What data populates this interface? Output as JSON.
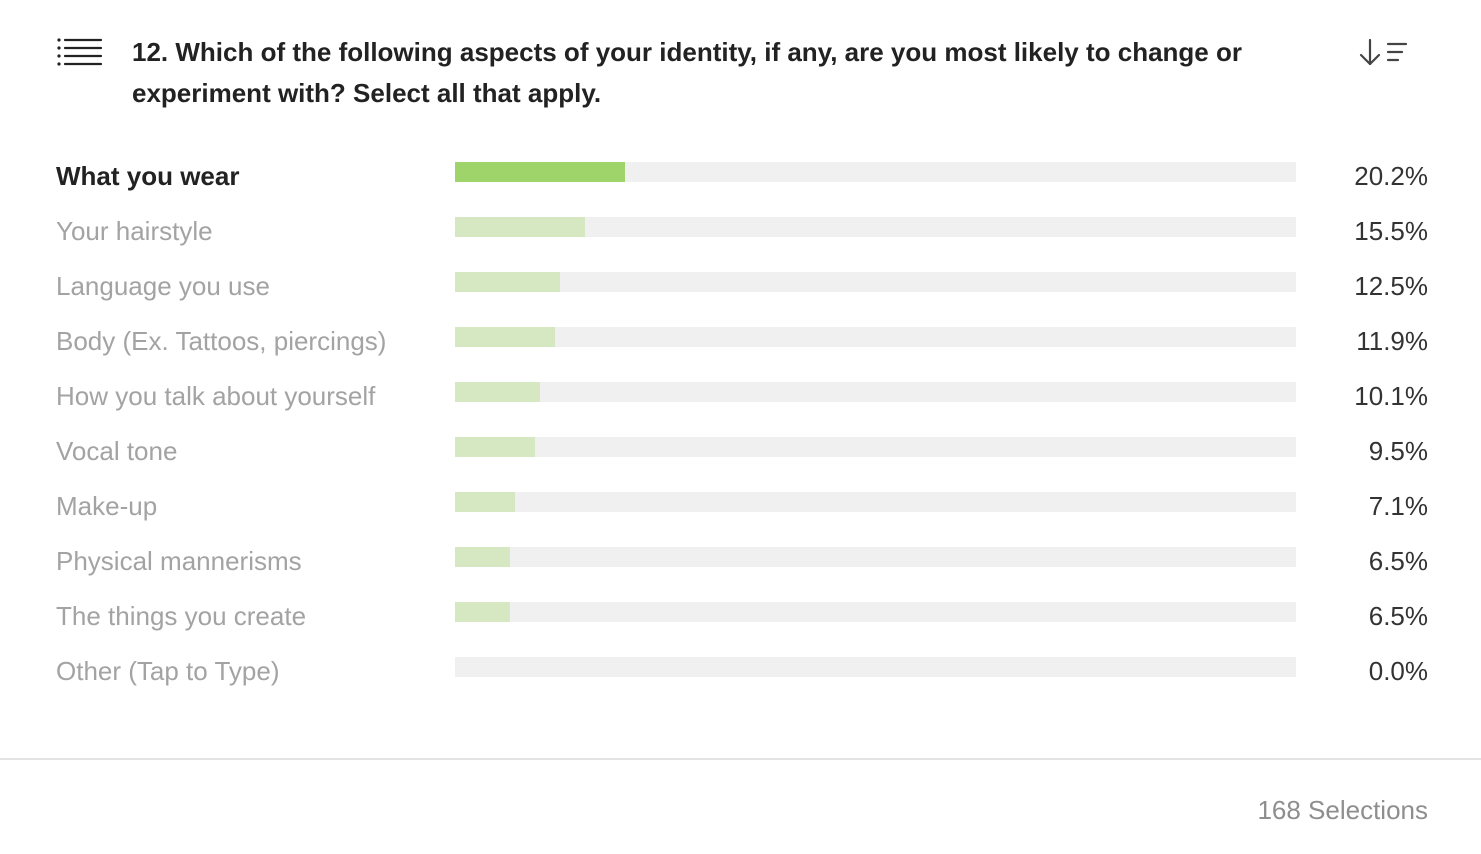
{
  "header": {
    "title": "12. Which of the following aspects of your identity, if any, are you most likely to change or experiment with? Select all that apply."
  },
  "icons": {
    "list": "list-icon",
    "sort": "sort-descending-icon"
  },
  "colors": {
    "top_bar": "#9fd46a",
    "other_bars": "#d6e8c1",
    "track": "#f0f0f0"
  },
  "chart_data": {
    "type": "bar",
    "orientation": "horizontal",
    "categories": [
      "What you wear",
      "Your hairstyle",
      "Language you use",
      "Body (Ex. Tattoos, piercings)",
      "How you talk about yourself",
      "Vocal tone",
      "Make-up",
      "Physical mannerisms",
      "The things you create",
      "Other (Tap to Type)"
    ],
    "values": [
      20.2,
      15.5,
      12.5,
      11.9,
      10.1,
      9.5,
      7.1,
      6.5,
      6.5,
      0.0
    ],
    "value_labels": [
      "20.2%",
      "15.5%",
      "12.5%",
      "11.9%",
      "10.1%",
      "9.5%",
      "7.1%",
      "6.5%",
      "6.5%",
      "0.0%"
    ],
    "xlim": [
      0,
      100
    ],
    "grid": false,
    "title": "12. Which of the following aspects of your identity, if any, are you most likely to change or experiment with? Select all that apply."
  },
  "footer": {
    "selections": "168 Selections"
  }
}
